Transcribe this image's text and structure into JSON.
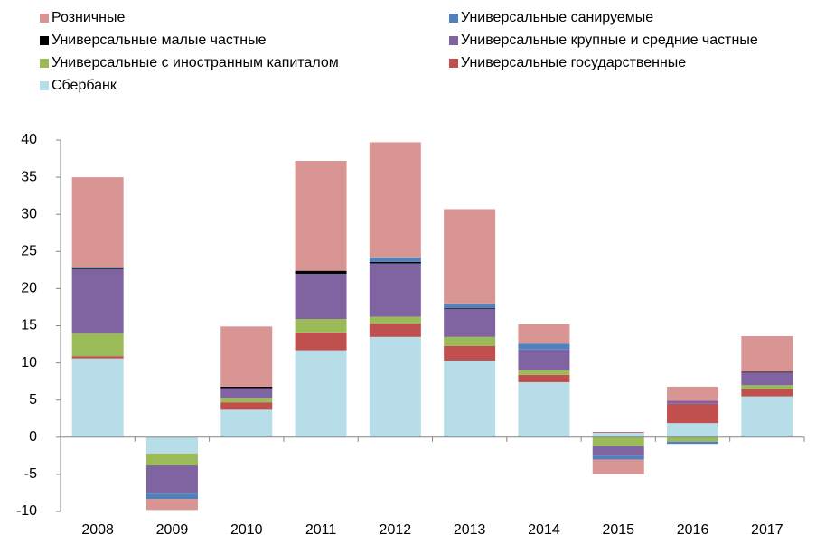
{
  "chart_data": {
    "type": "stacked_bar",
    "categories": [
      "2008",
      "2009",
      "2010",
      "2011",
      "2012",
      "2013",
      "2014",
      "2015",
      "2016",
      "2017"
    ],
    "series": [
      {
        "name": "Сбербанк",
        "color": "#b7dde8",
        "values": [
          10.6,
          -2.2,
          3.7,
          11.7,
          13.5,
          10.3,
          7.4,
          0.6,
          1.9,
          5.5
        ]
      },
      {
        "name": "Универсальные государственные",
        "color": "#c0504d",
        "values": [
          0.3,
          0,
          1.0,
          2.4,
          1.8,
          2.0,
          1.0,
          0.1,
          2.6,
          1.0
        ]
      },
      {
        "name": "Универсальные с иностранным капиталом",
        "color": "#9bbb59",
        "values": [
          3.1,
          -1.6,
          0.6,
          1.8,
          0.9,
          1.2,
          0.6,
          -1.2,
          -0.6,
          0.5
        ]
      },
      {
        "name": "Универсальные крупные и средние частные",
        "color": "#8064a2",
        "values": [
          8.6,
          -3.8,
          1.3,
          6.1,
          7.2,
          3.8,
          2.8,
          -1.3,
          0.4,
          1.7
        ]
      },
      {
        "name": "Универсальные малые частные",
        "color": "#000000",
        "values": [
          0.1,
          0,
          0.2,
          0.4,
          0.2,
          0.1,
          0,
          0,
          0,
          0.1
        ]
      },
      {
        "name": "Универсальные санируемые",
        "color": "#4f81bd",
        "values": [
          0.1,
          -0.7,
          0,
          0,
          0.6,
          0.6,
          0.8,
          -0.5,
          -0.3,
          0
        ]
      },
      {
        "name": "Розничные",
        "color": "#d99594",
        "values": [
          12.2,
          -1.5,
          8.1,
          14.8,
          15.5,
          12.7,
          2.6,
          -2.0,
          1.9,
          4.8
        ]
      }
    ],
    "ylim": [
      -10,
      40
    ],
    "yticks": [
      -10,
      -5,
      0,
      5,
      10,
      15,
      20,
      25,
      30,
      35,
      40
    ]
  }
}
